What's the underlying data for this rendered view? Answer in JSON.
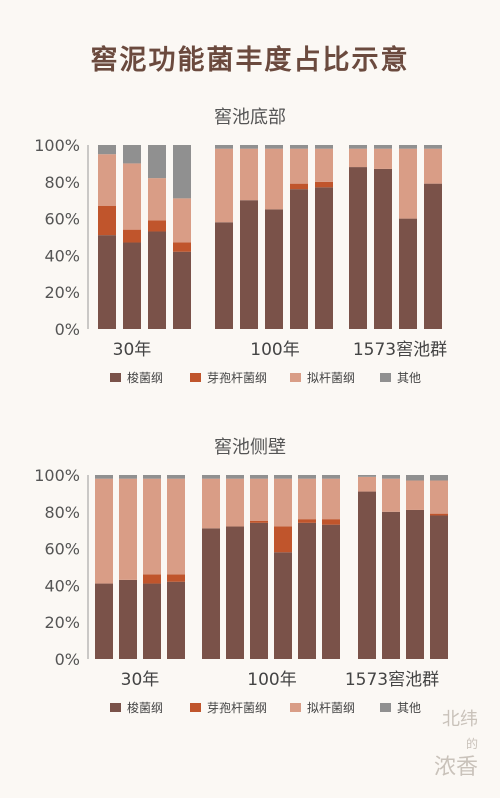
{
  "title": "窖泥功能菌丰度占比示意",
  "colors": {
    "suo": "#7a5249",
    "yabao": "#c0552c",
    "ni": "#d99d86",
    "other": "#909090",
    "title": "#6b4a3e"
  },
  "watermark": {
    "line1": "北纬",
    "line2": "的",
    "line3": "浓香"
  },
  "chart_data": [
    {
      "type": "bar",
      "stacked": true,
      "title": "窖池底部",
      "ylim": [
        0,
        100
      ],
      "yticks": [
        "0%",
        "20%",
        "40%",
        "60%",
        "80%",
        "100%"
      ],
      "groups": [
        {
          "label": "30年",
          "bars": 4
        },
        {
          "label": "100年",
          "bars": 5
        },
        {
          "label": "1573窖池群",
          "bars": 4
        }
      ],
      "legend_position": "bottom",
      "series": [
        {
          "name": "梭菌纲",
          "color_key": "suo",
          "values": [
            51,
            47,
            53,
            42,
            58,
            70,
            65,
            76,
            77,
            88,
            87,
            60,
            79
          ]
        },
        {
          "name": "芽孢杆菌纲",
          "color_key": "yabao",
          "values": [
            16,
            7,
            6,
            5,
            0,
            0,
            0,
            3,
            3,
            0,
            0,
            0,
            0
          ]
        },
        {
          "name": "拟杆菌纲",
          "color_key": "ni",
          "values": [
            28,
            36,
            23,
            24,
            40,
            28,
            33,
            19,
            18,
            10,
            11,
            38,
            19
          ]
        },
        {
          "name": "其他",
          "color_key": "other",
          "values": [
            5,
            10,
            18,
            29,
            2,
            2,
            2,
            2,
            2,
            2,
            2,
            2,
            2
          ]
        }
      ]
    },
    {
      "type": "bar",
      "stacked": true,
      "title": "窖池侧壁",
      "ylim": [
        0,
        100
      ],
      "yticks": [
        "0%",
        "20%",
        "40%",
        "60%",
        "80%",
        "100%"
      ],
      "groups": [
        {
          "label": "30年",
          "bars": 4
        },
        {
          "label": "100年",
          "bars": 6
        },
        {
          "label": "1573窖池群",
          "bars": 4
        }
      ],
      "legend_position": "bottom",
      "series": [
        {
          "name": "梭菌纲",
          "color_key": "suo",
          "values": [
            41,
            43,
            41,
            42,
            71,
            72,
            74,
            58,
            74,
            73,
            91,
            80,
            81,
            78
          ]
        },
        {
          "name": "芽孢杆菌纲",
          "color_key": "yabao",
          "values": [
            0,
            0,
            5,
            4,
            0,
            0,
            1,
            14,
            2,
            3,
            0,
            0,
            0,
            1
          ]
        },
        {
          "name": "拟杆菌纲",
          "color_key": "ni",
          "values": [
            57,
            55,
            52,
            52,
            27,
            26,
            23,
            26,
            22,
            22,
            8,
            18,
            16,
            18
          ]
        },
        {
          "name": "其他",
          "color_key": "other",
          "values": [
            2,
            2,
            2,
            2,
            2,
            2,
            2,
            2,
            2,
            2,
            1,
            2,
            3,
            3
          ]
        }
      ]
    }
  ]
}
